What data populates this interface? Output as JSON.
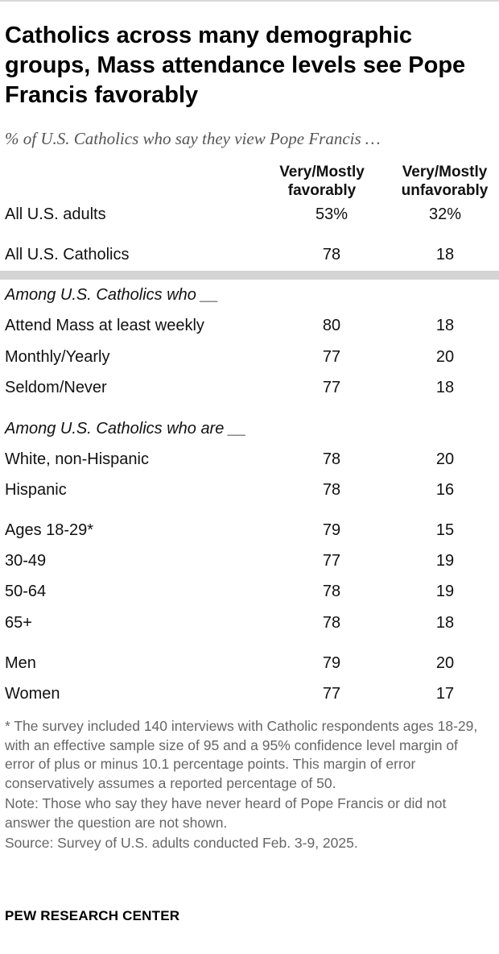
{
  "title": "Catholics across many demographic groups, Mass attendance levels see Pope Francis favorably",
  "subtitle": "% of U.S. Catholics who say they view Pope Francis …",
  "brand": "PEW RESEARCH CENTER",
  "notes": {
    "footnote": "* The survey included 140 interviews with Catholic respondents ages 18-29, with an effective sample size of 95 and a 95% confidence level margin of error of plus or minus 10.1 percentage points. This margin of error conservatively assumes a reported percentage of 50.",
    "note": "Note: Those who say they have never heard of Pope Francis or did not answer the question are not shown.",
    "source": "Source: Survey of U.S. adults conducted Feb. 3-9, 2025."
  },
  "chart_data": {
    "type": "table",
    "columns": [
      "Very/Mostly favorably",
      "Very/Mostly unfavorably"
    ],
    "column_lines": [
      [
        "Very/Mostly",
        "favorably"
      ],
      [
        "Very/Mostly",
        "unfavorably"
      ]
    ],
    "sections": [
      "Among U.S. Catholics who __",
      "Among U.S. Catholics who are __"
    ],
    "rows": [
      {
        "label": "All U.S. adults",
        "favorable": "53%",
        "unfavorable": "32%"
      },
      {
        "label": "All U.S. Catholics",
        "favorable": "78",
        "unfavorable": "18"
      },
      {
        "label": "Attend Mass at least weekly",
        "favorable": "80",
        "unfavorable": "18"
      },
      {
        "label": "Monthly/Yearly",
        "favorable": "77",
        "unfavorable": "20"
      },
      {
        "label": "Seldom/Never",
        "favorable": "77",
        "unfavorable": "18"
      },
      {
        "label": "White, non-Hispanic",
        "favorable": "78",
        "unfavorable": "20"
      },
      {
        "label": "Hispanic",
        "favorable": "78",
        "unfavorable": "16"
      },
      {
        "label": "Ages 18-29*",
        "favorable": "79",
        "unfavorable": "15"
      },
      {
        "label": "30-49",
        "favorable": "77",
        "unfavorable": "19"
      },
      {
        "label": "50-64",
        "favorable": "78",
        "unfavorable": "19"
      },
      {
        "label": "65+",
        "favorable": "78",
        "unfavorable": "18"
      },
      {
        "label": "Men",
        "favorable": "79",
        "unfavorable": "20"
      },
      {
        "label": "Women",
        "favorable": "77",
        "unfavorable": "17"
      }
    ]
  }
}
